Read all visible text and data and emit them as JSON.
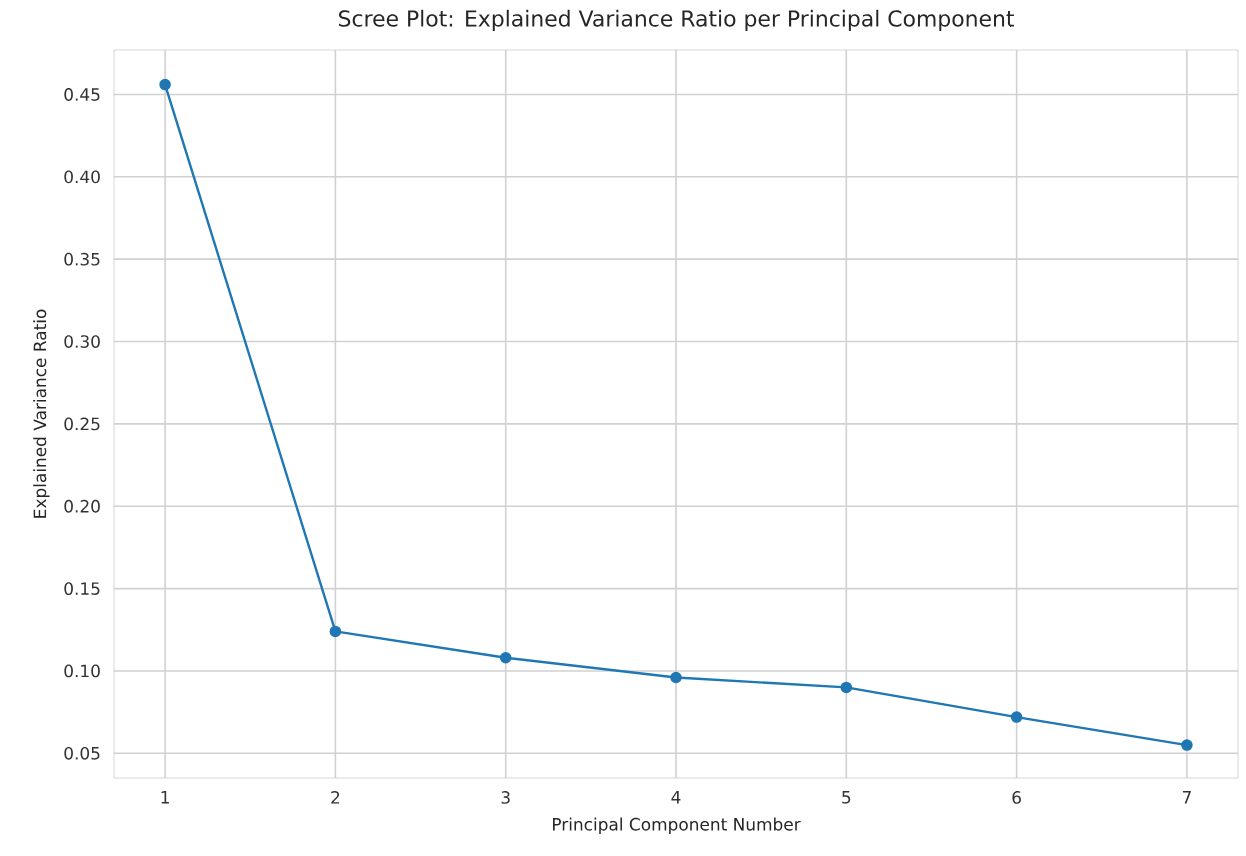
{
  "chart_data": {
    "type": "line",
    "title": "Scree Plot: Explained Variance Ratio per Principal Component",
    "xlabel": "Principal Component Number",
    "ylabel": "Explained Variance Ratio",
    "x": [
      1,
      2,
      3,
      4,
      5,
      6,
      7
    ],
    "series": [
      {
        "color": "#1f77b4",
        "values": [
          0.456,
          0.124,
          0.108,
          0.096,
          0.09,
          0.072,
          0.055
        ]
      }
    ],
    "xlim": [
      0.7,
      7.3
    ],
    "ylim": [
      0.035,
      0.477
    ],
    "xticks": [
      1,
      2,
      3,
      4,
      5,
      6,
      7
    ],
    "yticks": [
      {
        "value": 0.05,
        "label": "0.05"
      },
      {
        "value": 0.1,
        "label": "0.10"
      },
      {
        "value": 0.15,
        "label": "0.15"
      },
      {
        "value": 0.2,
        "label": "0.20"
      },
      {
        "value": 0.25,
        "label": "0.25"
      },
      {
        "value": 0.3,
        "label": "0.30"
      },
      {
        "value": 0.35,
        "label": "0.35"
      },
      {
        "value": 0.4,
        "label": "0.40"
      },
      {
        "value": 0.45,
        "label": "0.45"
      }
    ],
    "grid": true,
    "marker": "circle",
    "line_style": "solid"
  }
}
